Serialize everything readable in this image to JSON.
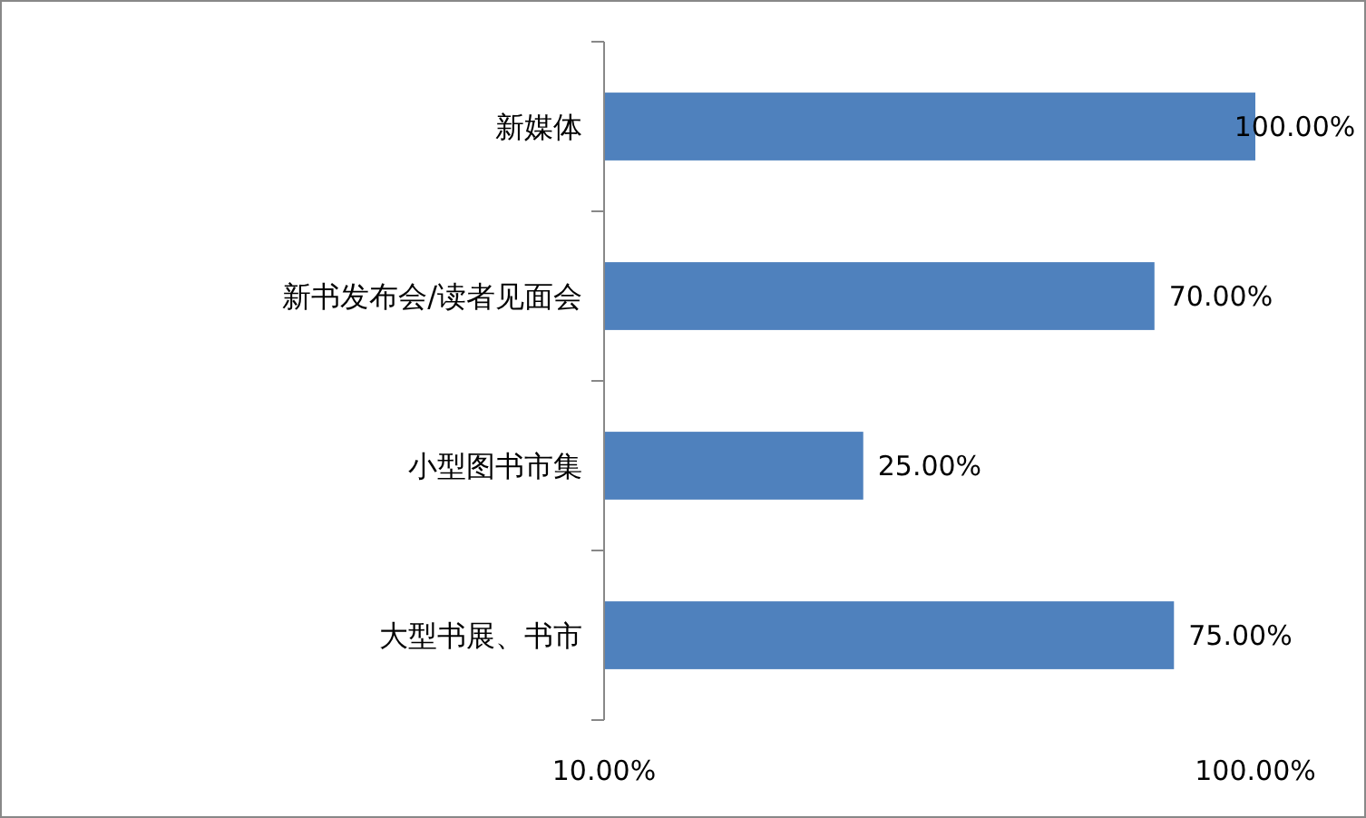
{
  "chart_data": {
    "type": "bar",
    "orientation": "horizontal",
    "categories": [
      "新媒体",
      "新书发布会/读者见面会",
      "小型图书市集",
      "大型书展、书市"
    ],
    "values": [
      100,
      70,
      25,
      75
    ],
    "value_labels": [
      "100.00%",
      "70.00%",
      "25.00%",
      "75.00%"
    ],
    "color": "#4f81bd",
    "log": "x",
    "xlim": [
      10,
      100
    ],
    "xticks": [
      {
        "value": 10,
        "label": "10.00%"
      },
      {
        "value": 100,
        "label": "100.00%"
      }
    ],
    "grid": false
  }
}
